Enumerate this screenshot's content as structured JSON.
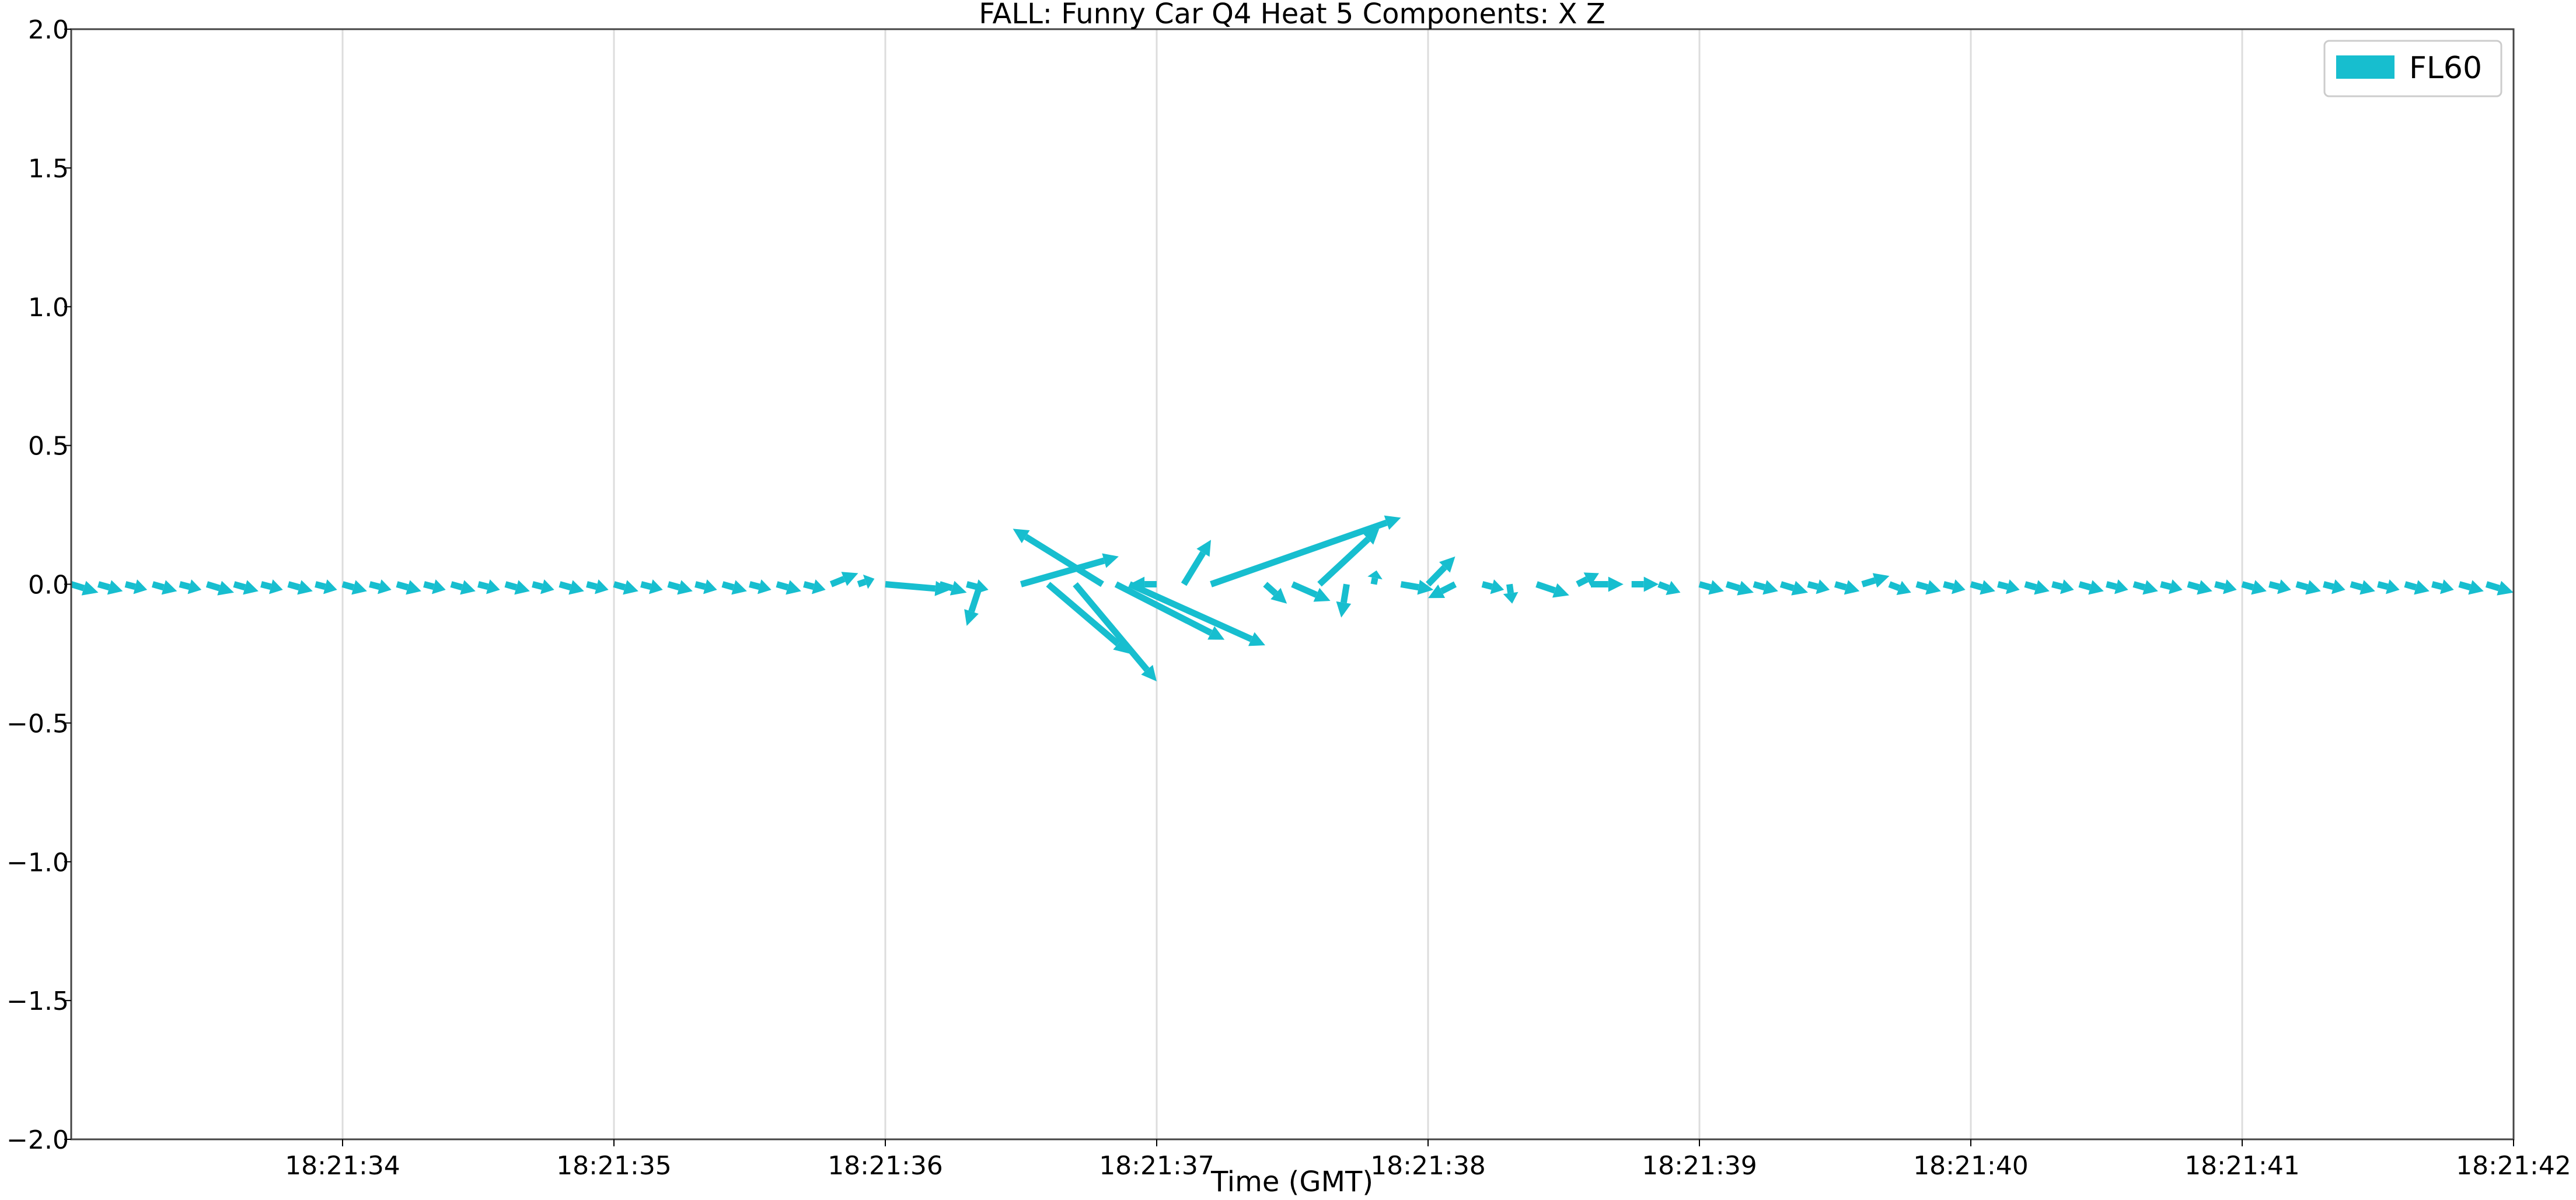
{
  "chart_data": {
    "type": "quiver",
    "title": "FALL: Funny Car Q4 Heat 5 Components: X Z",
    "xlabel": "Time (GMT)",
    "ylabel": "",
    "x_ticks": [
      "18:21:34",
      "18:21:35",
      "18:21:36",
      "18:21:37",
      "18:21:38",
      "18:21:39",
      "18:21:40",
      "18:21:41",
      "18:21:42"
    ],
    "x_range": [
      "18:21:33.00",
      "18:21:42.00"
    ],
    "y_ticks": [
      "2.0",
      "1.5",
      "1.0",
      "0.5",
      "0.0",
      "−0.5",
      "−1.0",
      "−1.5",
      "−2.0"
    ],
    "ylim": [
      -2.0,
      2.0
    ],
    "grid": "vertical lines at each x tick",
    "legend": {
      "position": "top-right",
      "entries": [
        "FL60"
      ]
    },
    "colors": {
      "series": "#17becf",
      "grid": "#dddddd",
      "frame": "#444444"
    },
    "series": [
      {
        "name": "FL60",
        "arrows": [
          {
            "t": "18:21:33.00",
            "u": 0.1,
            "v": -0.03
          },
          {
            "t": "18:21:33.10",
            "u": 0.09,
            "v": -0.025
          },
          {
            "t": "18:21:33.20",
            "u": 0.08,
            "v": -0.02
          },
          {
            "t": "18:21:33.30",
            "u": 0.09,
            "v": -0.025
          },
          {
            "t": "18:21:33.40",
            "u": 0.08,
            "v": -0.02
          },
          {
            "t": "18:21:33.50",
            "u": 0.1,
            "v": -0.03
          },
          {
            "t": "18:21:33.60",
            "u": 0.09,
            "v": -0.025
          },
          {
            "t": "18:21:33.70",
            "u": 0.08,
            "v": -0.02
          },
          {
            "t": "18:21:33.80",
            "u": 0.09,
            "v": -0.025
          },
          {
            "t": "18:21:33.90",
            "u": 0.08,
            "v": -0.02
          },
          {
            "t": "18:21:34.00",
            "u": 0.09,
            "v": -0.025
          },
          {
            "t": "18:21:34.10",
            "u": 0.08,
            "v": -0.02
          },
          {
            "t": "18:21:34.20",
            "u": 0.09,
            "v": -0.025
          },
          {
            "t": "18:21:34.30",
            "u": 0.08,
            "v": -0.02
          },
          {
            "t": "18:21:34.40",
            "u": 0.09,
            "v": -0.025
          },
          {
            "t": "18:21:34.50",
            "u": 0.08,
            "v": -0.02
          },
          {
            "t": "18:21:34.60",
            "u": 0.09,
            "v": -0.025
          },
          {
            "t": "18:21:34.70",
            "u": 0.08,
            "v": -0.02
          },
          {
            "t": "18:21:34.80",
            "u": 0.09,
            "v": -0.025
          },
          {
            "t": "18:21:34.90",
            "u": 0.08,
            "v": -0.02
          },
          {
            "t": "18:21:35.00",
            "u": 0.09,
            "v": -0.025
          },
          {
            "t": "18:21:35.10",
            "u": 0.08,
            "v": -0.02
          },
          {
            "t": "18:21:35.20",
            "u": 0.09,
            "v": -0.025
          },
          {
            "t": "18:21:35.30",
            "u": 0.08,
            "v": -0.02
          },
          {
            "t": "18:21:35.40",
            "u": 0.09,
            "v": -0.025
          },
          {
            "t": "18:21:35.50",
            "u": 0.08,
            "v": -0.02
          },
          {
            "t": "18:21:35.60",
            "u": 0.09,
            "v": -0.025
          },
          {
            "t": "18:21:35.70",
            "u": 0.08,
            "v": -0.02
          },
          {
            "t": "18:21:35.80",
            "u": 0.1,
            "v": 0.04
          },
          {
            "t": "18:21:35.90",
            "u": 0.06,
            "v": 0.02
          },
          {
            "t": "18:21:36.00",
            "u": 0.24,
            "v": -0.02
          },
          {
            "t": "18:21:36.20",
            "u": 0.1,
            "v": -0.03
          },
          {
            "t": "18:21:36.30",
            "u": 0.08,
            "v": -0.02
          },
          {
            "t": "18:21:36.35",
            "u": -0.05,
            "v": -0.15
          },
          {
            "t": "18:21:36.50",
            "u": 0.36,
            "v": 0.1
          },
          {
            "t": "18:21:36.60",
            "u": 0.3,
            "v": -0.25
          },
          {
            "t": "18:21:36.70",
            "u": 0.3,
            "v": -0.35
          },
          {
            "t": "18:21:36.80",
            "u": -0.33,
            "v": 0.2
          },
          {
            "t": "18:21:36.85",
            "u": 0.4,
            "v": -0.2
          },
          {
            "t": "18:21:36.90",
            "u": 0.5,
            "v": -0.22
          },
          {
            "t": "18:21:37.00",
            "u": -0.1,
            "v": 0.0
          },
          {
            "t": "18:21:37.10",
            "u": 0.1,
            "v": 0.16
          },
          {
            "t": "18:21:37.20",
            "u": 0.7,
            "v": 0.24
          },
          {
            "t": "18:21:37.40",
            "u": 0.08,
            "v": -0.07
          },
          {
            "t": "18:21:37.50",
            "u": 0.14,
            "v": -0.06
          },
          {
            "t": "18:21:37.60",
            "u": 0.22,
            "v": 0.2
          },
          {
            "t": "18:21:37.70",
            "u": -0.02,
            "v": -0.12
          },
          {
            "t": "18:21:37.80",
            "u": 0.01,
            "v": 0.05
          },
          {
            "t": "18:21:37.90",
            "u": 0.12,
            "v": -0.02
          },
          {
            "t": "18:21:38.00",
            "u": 0.1,
            "v": 0.1
          },
          {
            "t": "18:21:38.10",
            "u": -0.1,
            "v": -0.05
          },
          {
            "t": "18:21:38.20",
            "u": 0.08,
            "v": -0.02
          },
          {
            "t": "18:21:38.30",
            "u": 0.01,
            "v": -0.07
          },
          {
            "t": "18:21:38.40",
            "u": 0.12,
            "v": -0.04
          },
          {
            "t": "18:21:38.55",
            "u": 0.08,
            "v": 0.04
          },
          {
            "t": "18:21:38.60",
            "u": 0.12,
            "v": 0.0
          },
          {
            "t": "18:21:38.75",
            "u": 0.1,
            "v": 0.0
          },
          {
            "t": "18:21:38.85",
            "u": 0.08,
            "v": -0.03
          },
          {
            "t": "18:21:39.00",
            "u": 0.09,
            "v": -0.025
          },
          {
            "t": "18:21:39.10",
            "u": 0.1,
            "v": -0.03
          },
          {
            "t": "18:21:39.20",
            "u": 0.09,
            "v": -0.025
          },
          {
            "t": "18:21:39.30",
            "u": 0.1,
            "v": -0.03
          },
          {
            "t": "18:21:39.40",
            "u": 0.08,
            "v": -0.02
          },
          {
            "t": "18:21:39.50",
            "u": 0.09,
            "v": -0.025
          },
          {
            "t": "18:21:39.60",
            "u": 0.1,
            "v": 0.03
          },
          {
            "t": "18:21:39.70",
            "u": 0.08,
            "v": -0.03
          },
          {
            "t": "18:21:39.80",
            "u": 0.09,
            "v": -0.025
          },
          {
            "t": "18:21:39.90",
            "u": 0.08,
            "v": -0.02
          },
          {
            "t": "18:21:40.00",
            "u": 0.09,
            "v": -0.025
          },
          {
            "t": "18:21:40.10",
            "u": 0.08,
            "v": -0.02
          },
          {
            "t": "18:21:40.20",
            "u": 0.09,
            "v": -0.025
          },
          {
            "t": "18:21:40.30",
            "u": 0.08,
            "v": -0.02
          },
          {
            "t": "18:21:40.40",
            "u": 0.09,
            "v": -0.025
          },
          {
            "t": "18:21:40.50",
            "u": 0.08,
            "v": -0.02
          },
          {
            "t": "18:21:40.60",
            "u": 0.09,
            "v": -0.025
          },
          {
            "t": "18:21:40.70",
            "u": 0.08,
            "v": -0.02
          },
          {
            "t": "18:21:40.80",
            "u": 0.09,
            "v": -0.025
          },
          {
            "t": "18:21:40.90",
            "u": 0.08,
            "v": -0.02
          },
          {
            "t": "18:21:41.00",
            "u": 0.09,
            "v": -0.025
          },
          {
            "t": "18:21:41.10",
            "u": 0.08,
            "v": -0.02
          },
          {
            "t": "18:21:41.20",
            "u": 0.09,
            "v": -0.025
          },
          {
            "t": "18:21:41.30",
            "u": 0.08,
            "v": -0.02
          },
          {
            "t": "18:21:41.40",
            "u": 0.09,
            "v": -0.025
          },
          {
            "t": "18:21:41.50",
            "u": 0.08,
            "v": -0.02
          },
          {
            "t": "18:21:41.60",
            "u": 0.09,
            "v": -0.025
          },
          {
            "t": "18:21:41.70",
            "u": 0.08,
            "v": -0.02
          },
          {
            "t": "18:21:41.80",
            "u": 0.09,
            "v": -0.025
          },
          {
            "t": "18:21:41.90",
            "u": 0.1,
            "v": -0.03
          }
        ]
      }
    ]
  }
}
